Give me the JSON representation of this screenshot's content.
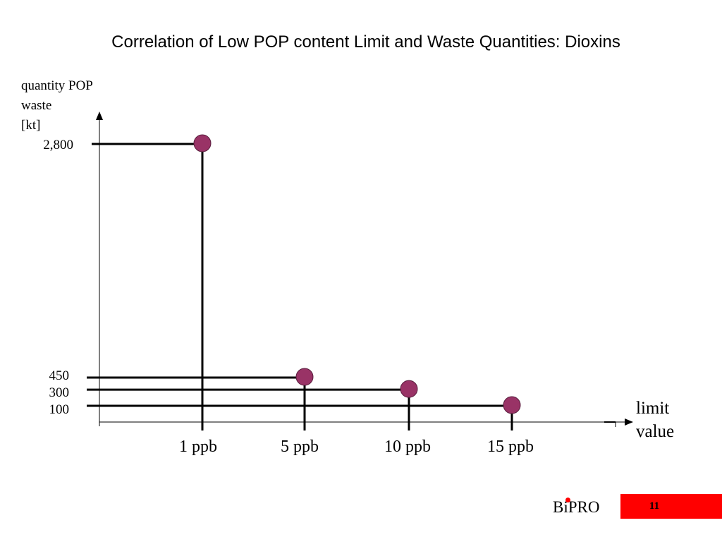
{
  "slide": {
    "title": "Correlation of Low POP content Limit and Waste Quantities: Dioxins",
    "brand": "BiPRO",
    "brand_dot_color": "#ff0000",
    "page_number": "11",
    "page_box_color": "#ff0000"
  },
  "chart_data": {
    "type": "scatter",
    "title": "Correlation of Low POP content Limit and Waste Quantities: Dioxins",
    "ylabel_lines": [
      "quantity POP",
      "waste",
      "[kt]"
    ],
    "xlabel_lines": [
      "limit",
      "value"
    ],
    "x_tick_labels": [
      "1 ppb",
      "5 ppb",
      "10 ppb",
      "15 ppb"
    ],
    "y_tick_labels": [
      "2,800",
      "450",
      "300",
      "100"
    ],
    "points": [
      {
        "x": "1 ppb",
        "y": 2800
      },
      {
        "x": "5 ppb",
        "y": 450
      },
      {
        "x": "10 ppb",
        "y": 300
      },
      {
        "x": "15 ppb",
        "y": 100
      }
    ],
    "marker_color": "#993366",
    "grid": false
  }
}
